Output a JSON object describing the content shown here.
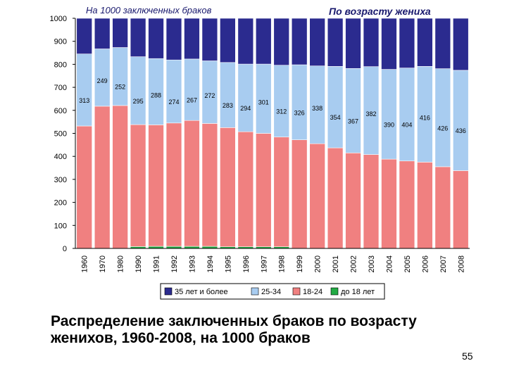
{
  "chart_data": {
    "type": "bar",
    "stacked": true,
    "title": "На 1000 заключенных браков",
    "subtitle": "По возрасту жениха",
    "ylim": [
      0,
      1000
    ],
    "yticks": [
      "0",
      "100",
      "200",
      "300",
      "400",
      "500",
      "600",
      "700",
      "800",
      "900",
      "1000"
    ],
    "grid": false,
    "legend_position": "bottom",
    "categories": [
      "1960",
      "1970",
      "1980",
      "1990",
      "1991",
      "1992",
      "1993",
      "1994",
      "1995",
      "1996",
      "1997",
      "1998",
      "1999",
      "2000",
      "2001",
      "2002",
      "2003",
      "2004",
      "2005",
      "2006",
      "2007",
      "2008"
    ],
    "series": [
      {
        "name": "до 18 лет",
        "color": "#22aa44",
        "values": [
          0,
          0,
          0,
          8,
          9,
          9,
          9,
          9,
          7,
          7,
          7,
          7,
          0,
          0,
          0,
          0,
          0,
          0,
          0,
          0,
          0,
          0
        ]
      },
      {
        "name": "18-24",
        "color": "#f08080",
        "values": [
          532,
          618,
          621,
          530,
          528,
          536,
          547,
          534,
          518,
          500,
          493,
          477,
          472,
          455,
          437,
          415,
          408,
          388,
          380,
          375,
          355,
          338
        ]
      },
      {
        "name": "25-34",
        "color": "#a8ccf0",
        "values": [
          313,
          249,
          252,
          295,
          288,
          274,
          267,
          272,
          283,
          294,
          301,
          312,
          326,
          338,
          354,
          367,
          382,
          390,
          404,
          416,
          426,
          436
        ]
      },
      {
        "name": "35 лет и более",
        "color": "#2b2b8f",
        "values": [
          155,
          133,
          127,
          167,
          175,
          181,
          177,
          185,
          192,
          199,
          199,
          204,
          202,
          207,
          209,
          218,
          210,
          222,
          216,
          209,
          219,
          226
        ]
      }
    ],
    "labels_25_34": [
      "313",
      "249",
      "252",
      "295",
      "288",
      "274",
      "267",
      "272",
      "283",
      "294",
      "301",
      "312",
      "326",
      "338",
      "354",
      "367",
      "382",
      "390",
      "404",
      "416",
      "426",
      "436"
    ]
  },
  "caption": "Распределение заключенных браков по возрасту женихов, 1960-2008, на 1000 браков",
  "page_number": "55"
}
